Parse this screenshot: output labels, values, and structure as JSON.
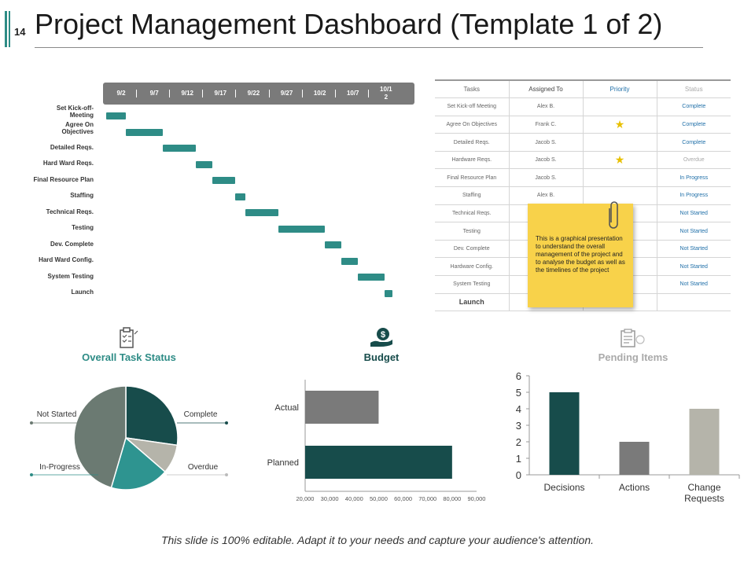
{
  "header": {
    "slide_number": "14",
    "title": "Project Management Dashboard (Template 1 of 2)"
  },
  "gantt": {
    "dates": [
      "9/2",
      "9/7",
      "9/12",
      "9/17",
      "9/22",
      "9/27",
      "10/2",
      "10/7",
      "10/1\n2"
    ],
    "tasks": [
      {
        "label": "Set Kick-off-\nMeeting",
        "start": 0.0,
        "end": 0.6
      },
      {
        "label": "Agree On\nObjectives",
        "start": 0.6,
        "end": 1.7
      },
      {
        "label": "Detailed Reqs.",
        "start": 1.7,
        "end": 2.7
      },
      {
        "label": "Hard Ward Reqs.",
        "start": 2.7,
        "end": 3.2
      },
      {
        "label": "Final Resource Plan",
        "start": 3.2,
        "end": 3.9
      },
      {
        "label": "Staffing",
        "start": 3.9,
        "end": 4.2
      },
      {
        "label": "Technical Reqs.",
        "start": 4.2,
        "end": 5.2
      },
      {
        "label": "Testing",
        "start": 5.2,
        "end": 6.6
      },
      {
        "label": "Dev. Complete",
        "start": 6.6,
        "end": 7.1
      },
      {
        "label": "Hard Ward Config.",
        "start": 7.1,
        "end": 7.6
      },
      {
        "label": "System Testing",
        "start": 7.6,
        "end": 8.4
      },
      {
        "label": "Launch",
        "start": 8.4,
        "end": 8.65
      }
    ]
  },
  "table": {
    "headers": [
      "Tasks",
      "Assigned To",
      "Priority",
      "Status"
    ],
    "rows": [
      [
        "Set Kick-off Meeting",
        "Alex B.",
        "",
        "Complete"
      ],
      [
        "Agree On Objectives",
        "Frank C.",
        "★",
        "Complete"
      ],
      [
        "Detailed Reqs.",
        "Jacob S.",
        "",
        "Complete"
      ],
      [
        "Hardware Reqs.",
        "Jacob S.",
        "★",
        "Overdue"
      ],
      [
        "Final Resource Plan",
        "Jacob S.",
        "",
        "In Progress"
      ],
      [
        "Staffing",
        "Alex B.",
        "",
        "In Progress"
      ],
      [
        "Technical Reqs.",
        "",
        "",
        "Not Started"
      ],
      [
        "Testing",
        "",
        "",
        "Not Started"
      ],
      [
        "Dev. Complete",
        "",
        "",
        "Not Started"
      ],
      [
        "Hardware Config.",
        "",
        "",
        "Not Started"
      ],
      [
        "System Testing",
        "",
        "",
        "Not Started"
      ],
      [
        "Launch",
        "",
        "",
        ""
      ]
    ]
  },
  "note": {
    "text": "This is a graphical presentation to understand the overall management of the project and to analyse the budget as well as the timelines of the project"
  },
  "sections": {
    "task_status": "Overall Task Status",
    "budget": "Budget",
    "pending": "Pending Items"
  },
  "footer": "This slide is 100% editable. Adapt it to your needs and capture your audience's attention.",
  "colors": {
    "teal": "#2e8c86",
    "dark_teal": "#174c4b",
    "gray": "#7a7a7a",
    "light_gray": "#b5b4aa",
    "slate": "#6b7a72",
    "mid_teal": "#2e9490",
    "star": "#e8c000",
    "note": "#f8d24a"
  },
  "chart_data": [
    {
      "type": "pie",
      "title": "Overall Task Status",
      "categories": [
        "Complete",
        "Overdue",
        "In-Progress",
        "Not Started"
      ],
      "values": [
        3,
        1,
        2,
        5
      ]
    },
    {
      "type": "bar",
      "orientation": "horizontal",
      "title": "Budget",
      "categories": [
        "Actual",
        "Planned"
      ],
      "values": [
        50000,
        80000
      ],
      "xlim": [
        20000,
        90000
      ],
      "ticks": [
        "20,000",
        "30,000",
        "40,000",
        "50,000",
        "60,000",
        "70,000",
        "80,000",
        "90,000"
      ]
    },
    {
      "type": "bar",
      "title": "Pending Items",
      "categories": [
        "Decisions",
        "Actions",
        "Change\nRequests"
      ],
      "values": [
        5,
        2,
        4
      ],
      "ylim": [
        0,
        6
      ],
      "ticks": [
        "0",
        "1",
        "2",
        "3",
        "4",
        "5",
        "6"
      ]
    }
  ]
}
